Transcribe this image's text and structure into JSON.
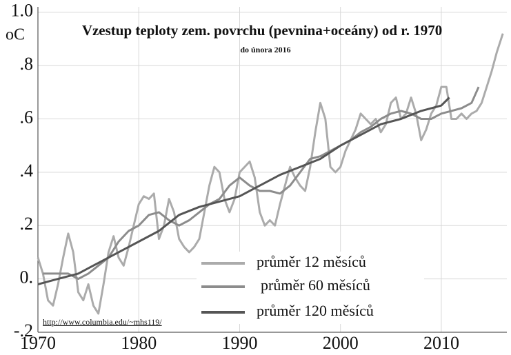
{
  "chart_data": {
    "type": "line",
    "title": "Vzestup teploty zem. povrchu (pevnina+oceány) od r. 1970",
    "subtitle": "do února 2016",
    "y_unit": "oC",
    "source": "http://www.columbia.edu/~mhs119/",
    "xlim": [
      1970,
      2016.5
    ],
    "xticks": [
      1970,
      1980,
      1990,
      2000,
      2010
    ],
    "ylim": [
      -0.2,
      1.02
    ],
    "yticks": [
      {
        "value": -0.2,
        "label": "-.2"
      },
      {
        "value": 0,
        "label": "0."
      },
      {
        "value": 0.2,
        "label": ".2"
      },
      {
        "value": 0.4,
        "label": ".4"
      },
      {
        "value": 0.6,
        "label": ".6"
      },
      {
        "value": 0.8,
        "label": ".8"
      },
      {
        "value": 1.0,
        "label": "1.0"
      }
    ],
    "grid": true,
    "legend": "lower center",
    "series": [
      {
        "name": "průměr 12 měsíců",
        "color": "#ababab",
        "x": [
          1970,
          1970.5,
          1971,
          1971.5,
          1972,
          1972.5,
          1973,
          1973.5,
          1974,
          1974.5,
          1975,
          1975.5,
          1976,
          1976.5,
          1977,
          1977.5,
          1978,
          1978.5,
          1979,
          1979.5,
          1980,
          1980.5,
          1981,
          1981.5,
          1982,
          1982.5,
          1983,
          1983.5,
          1984,
          1984.5,
          1985,
          1985.5,
          1986,
          1986.5,
          1987,
          1987.5,
          1988,
          1988.5,
          1989,
          1989.5,
          1990,
          1990.5,
          1991,
          1991.5,
          1992,
          1992.5,
          1993,
          1993.5,
          1994,
          1994.5,
          1995,
          1995.5,
          1996,
          1996.5,
          1997,
          1997.5,
          1998,
          1998.5,
          1999,
          1999.5,
          2000,
          2000.5,
          2001,
          2001.5,
          2002,
          2002.5,
          2003,
          2003.5,
          2004,
          2004.5,
          2005,
          2005.5,
          2006,
          2006.5,
          2007,
          2007.5,
          2008,
          2008.5,
          2009,
          2009.5,
          2010,
          2010.5,
          2011,
          2011.5,
          2012,
          2012.5,
          2013,
          2013.5,
          2014,
          2014.5,
          2015,
          2015.5,
          2016.1
        ],
        "values": [
          0.08,
          0.02,
          -0.08,
          -0.1,
          -0.02,
          0.08,
          0.17,
          0.1,
          -0.05,
          -0.08,
          -0.02,
          -0.1,
          -0.13,
          -0.02,
          0.1,
          0.16,
          0.08,
          0.05,
          0.12,
          0.2,
          0.28,
          0.31,
          0.3,
          0.32,
          0.15,
          0.2,
          0.3,
          0.25,
          0.15,
          0.12,
          0.1,
          0.12,
          0.15,
          0.25,
          0.35,
          0.42,
          0.4,
          0.3,
          0.25,
          0.3,
          0.4,
          0.42,
          0.44,
          0.38,
          0.25,
          0.2,
          0.22,
          0.2,
          0.28,
          0.35,
          0.42,
          0.38,
          0.35,
          0.33,
          0.42,
          0.55,
          0.66,
          0.6,
          0.42,
          0.4,
          0.42,
          0.48,
          0.52,
          0.56,
          0.62,
          0.6,
          0.58,
          0.6,
          0.55,
          0.58,
          0.66,
          0.68,
          0.6,
          0.62,
          0.68,
          0.62,
          0.52,
          0.56,
          0.62,
          0.65,
          0.72,
          0.72,
          0.6,
          0.6,
          0.62,
          0.6,
          0.62,
          0.63,
          0.66,
          0.72,
          0.78,
          0.85,
          0.92
        ]
      },
      {
        "name": "průměr 60 měsíců",
        "color": "#8c8c8c",
        "x": [
          1970.5,
          1972,
          1973,
          1974,
          1975,
          1976,
          1977,
          1978,
          1979,
          1980,
          1981,
          1982,
          1983,
          1984,
          1985,
          1986,
          1987,
          1988,
          1989,
          1990,
          1991,
          1992,
          1993,
          1994,
          1995,
          1996,
          1997,
          1998,
          1999,
          2000,
          2001,
          2002,
          2003,
          2004,
          2005,
          2006,
          2007,
          2008,
          2009,
          2010,
          2011,
          2012,
          2013,
          2013.7
        ],
        "values": [
          0.02,
          0.02,
          0.02,
          0.0,
          0.02,
          0.05,
          0.08,
          0.14,
          0.18,
          0.2,
          0.24,
          0.25,
          0.22,
          0.2,
          0.22,
          0.25,
          0.28,
          0.3,
          0.35,
          0.38,
          0.35,
          0.33,
          0.33,
          0.32,
          0.35,
          0.4,
          0.45,
          0.46,
          0.48,
          0.5,
          0.52,
          0.55,
          0.57,
          0.6,
          0.62,
          0.63,
          0.62,
          0.6,
          0.6,
          0.62,
          0.63,
          0.64,
          0.66,
          0.72
        ]
      },
      {
        "name": "průměr 120 měsíců",
        "color": "#555555",
        "x": [
          1970,
          1972,
          1974,
          1976,
          1978,
          1980,
          1982,
          1984,
          1986,
          1988,
          1990,
          1992,
          1994,
          1996,
          1998,
          2000,
          2002,
          2004,
          2006,
          2008,
          2010,
          2010.8
        ],
        "values": [
          -0.02,
          0.0,
          0.02,
          0.06,
          0.1,
          0.14,
          0.18,
          0.24,
          0.27,
          0.29,
          0.31,
          0.35,
          0.39,
          0.42,
          0.45,
          0.5,
          0.54,
          0.58,
          0.6,
          0.63,
          0.65,
          0.68
        ]
      }
    ]
  }
}
